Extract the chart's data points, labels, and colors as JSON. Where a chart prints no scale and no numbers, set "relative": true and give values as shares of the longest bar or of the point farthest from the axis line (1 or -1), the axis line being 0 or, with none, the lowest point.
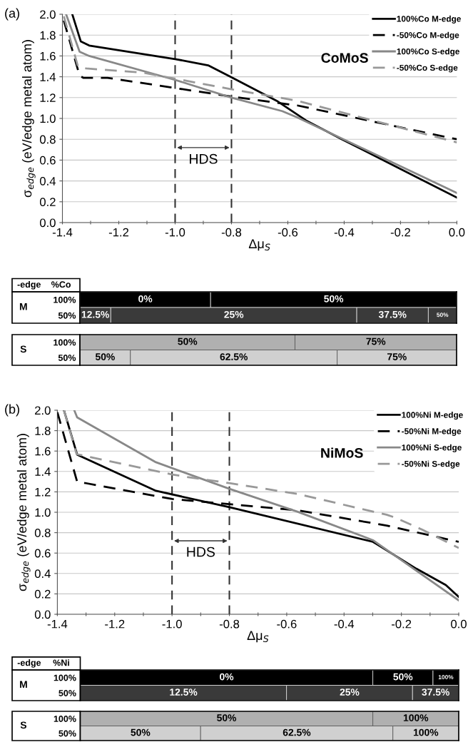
{
  "chart_data": [
    {
      "type": "line",
      "xlabel": "Δμ$_{S}$",
      "ylabel": "σ$_{edge}$ (eV/edge metal atom)",
      "xlim": [
        -1.4,
        0
      ],
      "ylim": [
        0,
        2
      ],
      "xticks": [
        {
          "value": -1.4,
          "label": "-1.4"
        },
        {
          "value": -1.3,
          "label": null
        },
        {
          "value": -1.2,
          "label": "-1.2"
        },
        {
          "value": -1.1,
          "label": null
        },
        {
          "value": -1.0,
          "label": "-1.0"
        },
        {
          "value": -0.9,
          "label": null
        },
        {
          "value": -0.8,
          "label": "-0.8"
        },
        {
          "value": -0.7,
          "label": null
        },
        {
          "value": -0.6,
          "label": "-0.6"
        },
        {
          "value": -0.5,
          "label": null
        },
        {
          "value": -0.4,
          "label": "-0.4"
        },
        {
          "value": -0.3,
          "label": null
        },
        {
          "value": -0.2,
          "label": "-0.2"
        },
        {
          "value": -0.1,
          "label": null
        },
        {
          "value": 0.0,
          "label": "0.0"
        }
      ],
      "yticks": [
        {
          "value": 0.0,
          "label": "0.0"
        },
        {
          "value": 0.2,
          "label": "0.2"
        },
        {
          "value": 0.4,
          "label": "0.4"
        },
        {
          "value": 0.6,
          "label": "0.6"
        },
        {
          "value": 0.8,
          "label": "0.8"
        },
        {
          "value": 1.0,
          "label": "1.0"
        },
        {
          "value": 1.2,
          "label": "1.2"
        },
        {
          "value": 1.4,
          "label": "1.4"
        },
        {
          "value": 1.6,
          "label": "1.6"
        },
        {
          "value": 1.8,
          "label": "1.8"
        },
        {
          "value": 2.0,
          "label": "2.0"
        }
      ],
      "grid": "y",
      "legend": "top right",
      "ref_lines": [
        {
          "axis": "x",
          "value": -1.0,
          "color": "#333333",
          "line_style": "dashed"
        },
        {
          "axis": "x",
          "value": -0.8,
          "color": "#333333",
          "line_style": "dashed"
        }
      ],
      "annotations": [
        "(a)",
        "CoMoS",
        "HDS"
      ],
      "series": [
        {
          "name": "100%Co M-edge",
          "color": "#000000",
          "line_style": "solid",
          "x": [
            -1.365,
            -1.335,
            -1.305,
            -1.0,
            -0.883,
            -0.804,
            -0.64,
            -0.535,
            -0.408,
            0
          ],
          "values": [
            2.0,
            1.74,
            1.7,
            1.57,
            1.51,
            1.4,
            1.17,
            0.98,
            0.8,
            0.24
          ]
        },
        {
          "name": "-50%Co M-edge",
          "color": "#000000",
          "line_style": "dashed",
          "x": [
            -1.395,
            -1.339,
            -1.326,
            -1.24,
            -0.8,
            -0.567,
            0
          ],
          "values": [
            1.94,
            1.41,
            1.39,
            1.39,
            1.21,
            1.125,
            0.8
          ]
        },
        {
          "name": "100%Co S-edge",
          "color": "#888888",
          "line_style": "solid",
          "x": [
            -1.387,
            -1.339,
            -1.305,
            -1.0,
            -0.8,
            -0.62,
            -0.567,
            0
          ],
          "values": [
            2.0,
            1.64,
            1.6,
            1.37,
            1.2,
            1.07,
            1.01,
            0.285
          ]
        },
        {
          "name": "-50%Co S-edge",
          "color": "#999999",
          "line_style": "dashed",
          "x": [
            -1.395,
            -1.345,
            -1.316,
            -1.115,
            -0.8,
            -0.567,
            0
          ],
          "values": [
            1.98,
            1.5,
            1.48,
            1.44,
            1.28,
            1.17,
            0.77
          ]
        }
      ]
    },
    {
      "type": "bar",
      "orientation": "horizontal",
      "stacked": true,
      "relative": true,
      "categories": [
        "100%",
        "50%"
      ],
      "ylabel": "M",
      "annotations": [
        "-edge",
        "%Co"
      ],
      "tick_labels": "y",
      "series": [
        {
          "name": "0%",
          "color": "#000000",
          "values": [
            0.347,
            null
          ]
        },
        {
          "name": "50%",
          "color": "#000000",
          "values": [
            0.653,
            null
          ]
        },
        {
          "name": "12.5%",
          "color": "#3a3a3a",
          "values": [
            null,
            0.082
          ]
        },
        {
          "name": "25%",
          "color": "#3a3a3a",
          "values": [
            null,
            0.653
          ]
        },
        {
          "name": "37.5%",
          "color": "#3a3a3a",
          "values": [
            null,
            0.19
          ]
        },
        {
          "name": "50%",
          "color": "#3a3a3a",
          "values": [
            null,
            0.075
          ]
        }
      ]
    },
    {
      "type": "bar",
      "orientation": "horizontal",
      "stacked": true,
      "relative": true,
      "categories": [
        "100%",
        "50%"
      ],
      "ylabel": "S",
      "tick_labels": "y",
      "series": [
        {
          "name": "50%",
          "color": "#b0b0b0",
          "values": [
            0.571,
            null
          ]
        },
        {
          "name": "75%",
          "color": "#b0b0b0",
          "values": [
            0.429,
            null
          ]
        },
        {
          "name": "50%",
          "color": "#d0d0d0",
          "values": [
            null,
            0.134
          ]
        },
        {
          "name": "62.5%",
          "color": "#d0d0d0",
          "values": [
            null,
            0.549
          ]
        },
        {
          "name": "75%",
          "color": "#d0d0d0",
          "values": [
            null,
            0.317
          ]
        }
      ]
    },
    {
      "type": "line",
      "xlabel": "Δμ$_{S}$",
      "ylabel": "σ$_{edge}$ (eV/edge metal atom)",
      "xlim": [
        -1.4,
        0
      ],
      "ylim": [
        0,
        2
      ],
      "xticks": [
        {
          "value": -1.4,
          "label": "-1.4"
        },
        {
          "value": -1.3,
          "label": null
        },
        {
          "value": -1.2,
          "label": "-1.2"
        },
        {
          "value": -1.1,
          "label": null
        },
        {
          "value": -1.0,
          "label": "-1.0"
        },
        {
          "value": -0.9,
          "label": null
        },
        {
          "value": -0.8,
          "label": "-0.8"
        },
        {
          "value": -0.7,
          "label": null
        },
        {
          "value": -0.6,
          "label": "-0.6"
        },
        {
          "value": -0.5,
          "label": null
        },
        {
          "value": -0.4,
          "label": "-0.4"
        },
        {
          "value": -0.3,
          "label": null
        },
        {
          "value": -0.2,
          "label": "-0.2"
        },
        {
          "value": -0.1,
          "label": null
        },
        {
          "value": 0.0,
          "label": "0.0"
        }
      ],
      "yticks": [
        {
          "value": 0.0,
          "label": "0.0"
        },
        {
          "value": 0.2,
          "label": "0.2"
        },
        {
          "value": 0.4,
          "label": "0.4"
        },
        {
          "value": 0.6,
          "label": "0.6"
        },
        {
          "value": 0.8,
          "label": "0.8"
        },
        {
          "value": 1.0,
          "label": "1.0"
        },
        {
          "value": 1.2,
          "label": "1.2"
        },
        {
          "value": 1.4,
          "label": "1.4"
        },
        {
          "value": 1.6,
          "label": "1.6"
        },
        {
          "value": 1.8,
          "label": "1.8"
        },
        {
          "value": 2.0,
          "label": "2.0"
        }
      ],
      "grid": "y",
      "legend": "top right",
      "ref_lines": [
        {
          "axis": "x",
          "value": -1.0,
          "color": "#333333",
          "line_style": "dashed"
        },
        {
          "axis": "x",
          "value": -0.8,
          "color": "#333333",
          "line_style": "dashed"
        }
      ],
      "annotations": [
        "(b)",
        "NiMoS",
        "HDS"
      ],
      "series": [
        {
          "name": "100%Ni M-edge",
          "color": "#000000",
          "line_style": "solid",
          "x": [
            -1.377,
            -1.331,
            -1.056,
            -0.8,
            -0.299,
            -0.148,
            -0.045,
            0
          ],
          "values": [
            2.0,
            1.565,
            1.21,
            1.05,
            0.71,
            0.447,
            0.287,
            0.171
          ]
        },
        {
          "name": "-50%Ni M-edge",
          "color": "#000000",
          "line_style": "dashed",
          "x": [
            -1.4,
            -1.331,
            -1.3,
            -0.999,
            -0.8,
            -0.563,
            -0.252,
            0
          ],
          "values": [
            1.98,
            1.3,
            1.285,
            1.13,
            1.08,
            1.02,
            0.87,
            0.71
          ]
        },
        {
          "name": "100%Ni S-edge",
          "color": "#888888",
          "line_style": "solid",
          "x": [
            -1.341,
            -1.331,
            -1.056,
            -0.8,
            -0.563,
            -0.299,
            0
          ],
          "values": [
            2.0,
            1.93,
            1.49,
            1.23,
            1.006,
            0.726,
            0.136
          ]
        },
        {
          "name": "-50%Ni S-edge",
          "color": "#999999",
          "line_style": "dashed",
          "x": [
            -1.377,
            -1.333,
            -1.3,
            -0.999,
            -0.957,
            -0.8,
            -0.563,
            -0.252,
            -0.221,
            -0.128,
            0
          ],
          "values": [
            2.0,
            1.57,
            1.55,
            1.37,
            1.35,
            1.285,
            1.18,
            0.976,
            0.947,
            0.83,
            0.65
          ]
        }
      ]
    },
    {
      "type": "bar",
      "orientation": "horizontal",
      "stacked": true,
      "relative": true,
      "categories": [
        "100%",
        "50%"
      ],
      "ylabel": "M",
      "annotations": [
        "-edge",
        "%Ni"
      ],
      "tick_labels": "y",
      "series": [
        {
          "name": "0%",
          "color": "#000000",
          "values": [
            0.773,
            null
          ]
        },
        {
          "name": "50%",
          "color": "#000000",
          "values": [
            0.159,
            null
          ]
        },
        {
          "name": "100%",
          "color": "#000000",
          "values": [
            0.068,
            null
          ]
        },
        {
          "name": "12.5%",
          "color": "#3a3a3a",
          "values": [
            null,
            0.545
          ]
        },
        {
          "name": "25%",
          "color": "#3a3a3a",
          "values": [
            null,
            0.333
          ]
        },
        {
          "name": "37.5%",
          "color": "#3a3a3a",
          "values": [
            null,
            0.122
          ]
        }
      ]
    },
    {
      "type": "bar",
      "orientation": "horizontal",
      "stacked": true,
      "relative": true,
      "categories": [
        "100%",
        "50%"
      ],
      "ylabel": "S",
      "tick_labels": "y",
      "series": [
        {
          "name": "50%",
          "color": "#b0b0b0",
          "values": [
            0.773,
            null
          ]
        },
        {
          "name": "100%",
          "color": "#b0b0b0",
          "values": [
            0.227,
            null
          ]
        },
        {
          "name": "50%",
          "color": "#d0d0d0",
          "values": [
            null,
            0.318
          ]
        },
        {
          "name": "62.5%",
          "color": "#d0d0d0",
          "values": [
            null,
            0.508
          ]
        },
        {
          "name": "100%",
          "color": "#d0d0d0",
          "values": [
            null,
            0.174
          ]
        }
      ]
    }
  ]
}
